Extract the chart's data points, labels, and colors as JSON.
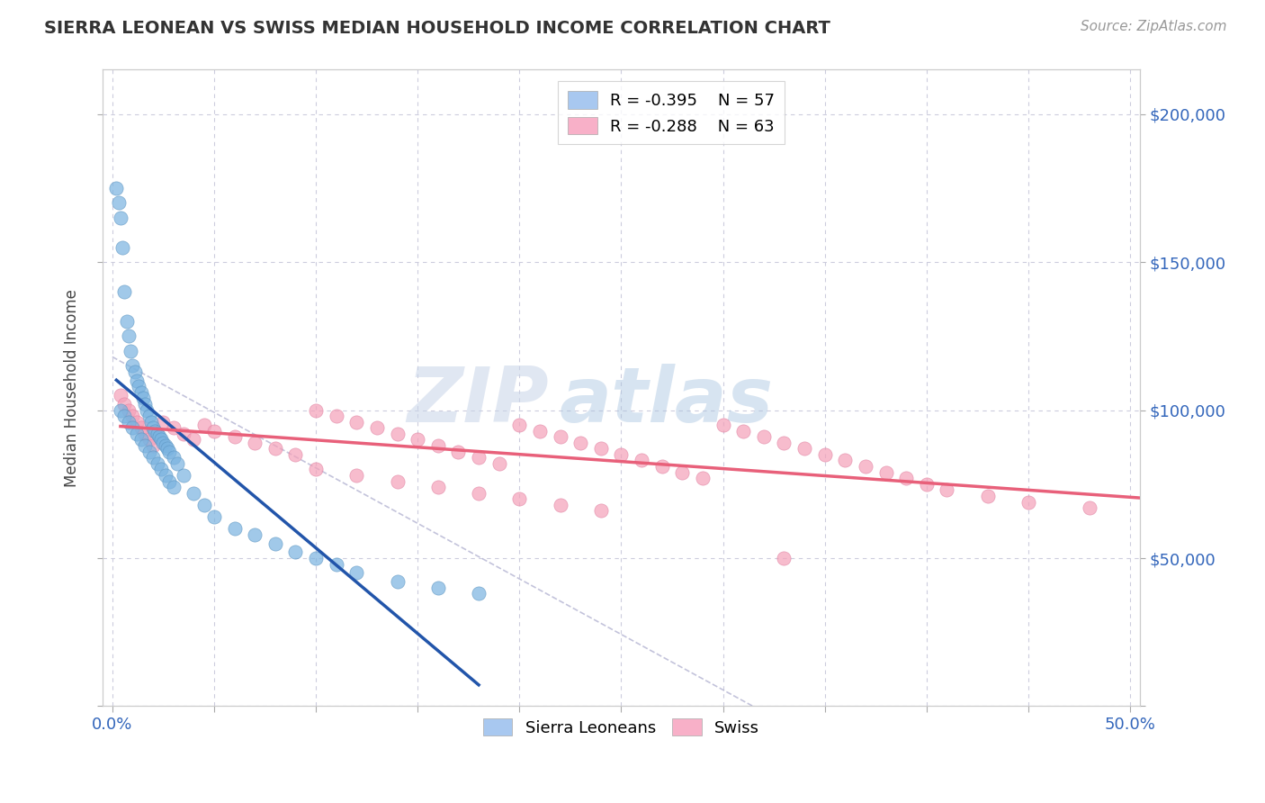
{
  "title": "SIERRA LEONEAN VS SWISS MEDIAN HOUSEHOLD INCOME CORRELATION CHART",
  "source_text": "Source: ZipAtlas.com",
  "ylabel": "Median Household Income",
  "xlim": [
    -0.005,
    0.505
  ],
  "ylim": [
    0,
    215000
  ],
  "xtick_positions": [
    0.0,
    0.05,
    0.1,
    0.15,
    0.2,
    0.25,
    0.3,
    0.35,
    0.4,
    0.45,
    0.5
  ],
  "ytick_positions": [
    0,
    50000,
    100000,
    150000,
    200000
  ],
  "ytick_labels_right": [
    "",
    "$50,000",
    "$100,000",
    "$150,000",
    "$200,000"
  ],
  "series1_color": "#7ab3e0",
  "series1_edge": "#5a93c0",
  "series1_line_color": "#2255aa",
  "series2_color": "#f4a0b8",
  "series2_edge": "#e080a0",
  "series2_line_color": "#e8607a",
  "watermark_zip": "ZIP",
  "watermark_atlas": "atlas",
  "legend1_label": "R = -0.395    N = 57",
  "legend2_label": "R = -0.288    N = 63",
  "legend1_color": "#a8c8f0",
  "legend2_color": "#f8b0c8",
  "sierra_x": [
    0.002,
    0.003,
    0.004,
    0.005,
    0.006,
    0.007,
    0.008,
    0.009,
    0.01,
    0.011,
    0.012,
    0.013,
    0.014,
    0.015,
    0.016,
    0.017,
    0.018,
    0.019,
    0.02,
    0.021,
    0.022,
    0.023,
    0.024,
    0.025,
    0.026,
    0.027,
    0.028,
    0.03,
    0.032,
    0.035,
    0.04,
    0.045,
    0.05,
    0.06,
    0.07,
    0.08,
    0.09,
    0.1,
    0.11,
    0.12,
    0.14,
    0.16,
    0.18,
    0.004,
    0.006,
    0.008,
    0.01,
    0.012,
    0.014,
    0.016,
    0.018,
    0.02,
    0.022,
    0.024,
    0.026,
    0.028,
    0.03
  ],
  "sierra_y": [
    175000,
    170000,
    165000,
    155000,
    140000,
    130000,
    125000,
    120000,
    115000,
    113000,
    110000,
    108000,
    106000,
    104000,
    102000,
    100000,
    98000,
    96000,
    94000,
    93000,
    92000,
    91000,
    90000,
    89000,
    88000,
    87000,
    86000,
    84000,
    82000,
    78000,
    72000,
    68000,
    64000,
    60000,
    58000,
    55000,
    52000,
    50000,
    48000,
    45000,
    42000,
    40000,
    38000,
    100000,
    98000,
    96000,
    94000,
    92000,
    90000,
    88000,
    86000,
    84000,
    82000,
    80000,
    78000,
    76000,
    74000
  ],
  "swiss_x": [
    0.004,
    0.006,
    0.008,
    0.01,
    0.012,
    0.014,
    0.016,
    0.018,
    0.02,
    0.025,
    0.03,
    0.035,
    0.04,
    0.045,
    0.05,
    0.06,
    0.07,
    0.08,
    0.09,
    0.1,
    0.11,
    0.12,
    0.13,
    0.14,
    0.15,
    0.16,
    0.17,
    0.18,
    0.19,
    0.2,
    0.21,
    0.22,
    0.23,
    0.24,
    0.25,
    0.26,
    0.27,
    0.28,
    0.29,
    0.3,
    0.31,
    0.32,
    0.33,
    0.34,
    0.35,
    0.36,
    0.37,
    0.38,
    0.39,
    0.4,
    0.41,
    0.43,
    0.45,
    0.48,
    0.1,
    0.12,
    0.14,
    0.16,
    0.18,
    0.2,
    0.22,
    0.24,
    0.33
  ],
  "swiss_y": [
    105000,
    102000,
    100000,
    98000,
    96000,
    94000,
    92000,
    90000,
    88000,
    96000,
    94000,
    92000,
    90000,
    95000,
    93000,
    91000,
    89000,
    87000,
    85000,
    100000,
    98000,
    96000,
    94000,
    92000,
    90000,
    88000,
    86000,
    84000,
    82000,
    95000,
    93000,
    91000,
    89000,
    87000,
    85000,
    83000,
    81000,
    79000,
    77000,
    95000,
    93000,
    91000,
    89000,
    87000,
    85000,
    83000,
    81000,
    79000,
    77000,
    75000,
    73000,
    71000,
    69000,
    67000,
    80000,
    78000,
    76000,
    74000,
    72000,
    70000,
    68000,
    66000,
    50000
  ],
  "ref_line_x": [
    0.0,
    0.32
  ],
  "ref_line_y": [
    118000,
    -2000
  ],
  "sierra_trend_x": [
    0.002,
    0.18
  ],
  "swiss_trend_x": [
    0.004,
    0.505
  ]
}
